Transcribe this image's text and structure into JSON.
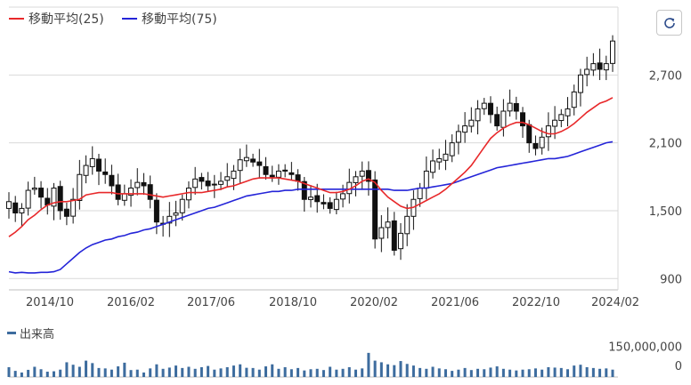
{
  "legend": {
    "ma25_label": "移動平均(25)",
    "ma75_label": "移動平均(75)",
    "volume_label": "出来高"
  },
  "colors": {
    "ma25": "#e8282a",
    "ma75": "#2424d8",
    "candle": "#111111",
    "volume": "#3d6c9e",
    "grid": "#d9d9d9"
  },
  "toolbar": {
    "refresh_icon": "refresh-icon"
  },
  "chart_data": {
    "type": "candlestick",
    "x_ticks": [
      "2014/10",
      "2016/02",
      "2017/06",
      "2018/10",
      "2020/02",
      "2021/06",
      "2022/10",
      "2024/02"
    ],
    "y_ticks": [
      "900",
      "1,500",
      "2,100",
      "2,700"
    ],
    "y_tick_values": [
      900,
      1500,
      2100,
      2700
    ],
    "ylim": [
      800,
      3300
    ],
    "volume_ticks": [
      "0",
      "150,000,000"
    ],
    "volume_tick_values": [
      0,
      150000000
    ],
    "volume_ylim": [
      0,
      200000000
    ],
    "x_range": [
      "2014-01",
      "2024-04"
    ],
    "close": [
      1580,
      1480,
      1520,
      1680,
      1700,
      1620,
      1550,
      1700,
      1500,
      1450,
      1600,
      1820,
      1900,
      1960,
      1850,
      1820,
      1720,
      1600,
      1650,
      1700,
      1750,
      1720,
      1600,
      1400,
      1380,
      1450,
      1480,
      1600,
      1700,
      1780,
      1760,
      1720,
      1730,
      1760,
      1800,
      1850,
      1950,
      1970,
      1930,
      1900,
      1820,
      1800,
      1850,
      1850,
      1820,
      1760,
      1600,
      1620,
      1580,
      1560,
      1520,
      1600,
      1650,
      1750,
      1800,
      1850,
      1760,
      1250,
      1350,
      1400,
      1150,
      1300,
      1450,
      1600,
      1700,
      1850,
      1940,
      1960,
      2000,
      2100,
      2200,
      2250,
      2300,
      2400,
      2450,
      2350,
      2250,
      2380,
      2450,
      2380,
      2250,
      2100,
      2050,
      2150,
      2250,
      2300,
      2350,
      2400,
      2550,
      2700,
      2750,
      2800,
      2750,
      2800,
      3000
    ],
    "ma25": [
      1270,
      1310,
      1360,
      1420,
      1460,
      1510,
      1550,
      1570,
      1580,
      1580,
      1590,
      1600,
      1640,
      1650,
      1660,
      1660,
      1660,
      1650,
      1650,
      1650,
      1650,
      1650,
      1640,
      1630,
      1620,
      1630,
      1640,
      1650,
      1660,
      1660,
      1660,
      1670,
      1680,
      1690,
      1710,
      1720,
      1740,
      1760,
      1780,
      1790,
      1790,
      1790,
      1790,
      1780,
      1770,
      1760,
      1740,
      1720,
      1700,
      1680,
      1660,
      1660,
      1670,
      1690,
      1720,
      1760,
      1780,
      1750,
      1680,
      1620,
      1580,
      1540,
      1520,
      1530,
      1560,
      1590,
      1620,
      1650,
      1690,
      1740,
      1790,
      1840,
      1900,
      1980,
      2060,
      2140,
      2190,
      2230,
      2260,
      2280,
      2280,
      2260,
      2230,
      2200,
      2180,
      2180,
      2200,
      2230,
      2270,
      2320,
      2370,
      2410,
      2450,
      2470,
      2500
    ],
    "ma75": [
      960,
      950,
      955,
      950,
      950,
      955,
      955,
      960,
      980,
      1030,
      1080,
      1130,
      1170,
      1200,
      1220,
      1240,
      1250,
      1270,
      1280,
      1300,
      1310,
      1330,
      1340,
      1360,
      1380,
      1400,
      1420,
      1440,
      1460,
      1480,
      1500,
      1520,
      1530,
      1550,
      1570,
      1590,
      1610,
      1630,
      1640,
      1650,
      1660,
      1670,
      1670,
      1680,
      1680,
      1690,
      1690,
      1690,
      1690,
      1690,
      1690,
      1690,
      1690,
      1690,
      1690,
      1690,
      1690,
      1690,
      1690,
      1690,
      1680,
      1680,
      1680,
      1690,
      1700,
      1700,
      1710,
      1720,
      1730,
      1740,
      1760,
      1780,
      1800,
      1820,
      1840,
      1860,
      1880,
      1890,
      1900,
      1910,
      1920,
      1930,
      1940,
      1950,
      1960,
      1960,
      1970,
      1980,
      2000,
      2020,
      2040,
      2060,
      2080,
      2100,
      2110
    ],
    "volume": [
      48,
      30,
      22,
      35,
      50,
      38,
      26,
      28,
      36,
      72,
      60,
      50,
      80,
      68,
      44,
      42,
      36,
      52,
      70,
      34,
      36,
      22,
      42,
      62,
      40,
      46,
      56,
      44,
      50,
      40,
      48,
      54,
      36,
      42,
      48,
      56,
      62,
      45,
      44,
      36,
      52,
      62,
      40,
      48,
      38,
      44,
      32,
      38,
      40,
      34,
      50,
      36,
      40,
      48,
      36,
      42,
      118,
      80,
      72,
      62,
      58,
      78,
      64,
      56,
      44,
      40,
      50,
      42,
      38,
      30,
      36,
      44,
      34,
      40,
      38,
      46,
      52,
      40,
      36,
      32,
      36,
      38,
      42,
      36,
      48,
      46,
      44,
      38,
      56,
      60,
      48,
      44,
      40,
      42,
      36
    ]
  }
}
